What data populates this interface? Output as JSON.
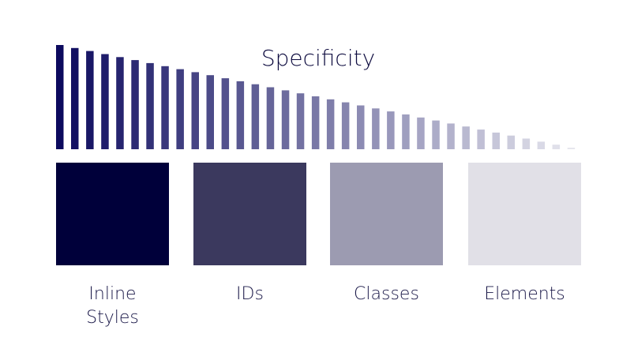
{
  "title": "Specificity",
  "categories": [
    {
      "label_lines": [
        "Inline",
        "Styles"
      ],
      "color": "#00003a"
    },
    {
      "label_lines": [
        "IDs"
      ],
      "color": "#3b395e"
    },
    {
      "label_lines": [
        "Classes"
      ],
      "color": "#9c9bb1"
    },
    {
      "label_lines": [
        "Elements"
      ],
      "color": "#e1e0e7"
    }
  ],
  "gradient": {
    "start_color": "#0c0a5e",
    "end_color": "#e6e6ee"
  }
}
